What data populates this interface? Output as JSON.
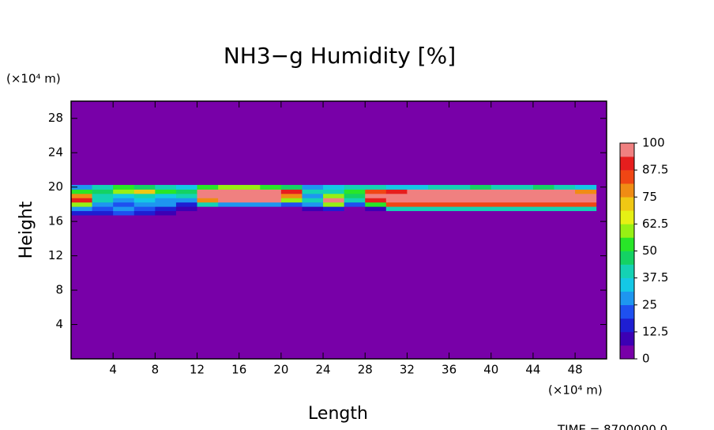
{
  "chart_data": {
    "type": "contour",
    "title": "NH3−g Humidity [%]",
    "y_unit": "(×10⁴ m)",
    "x_unit": "(×10⁴ m)",
    "x_label": "Length",
    "y_label": "Height",
    "footer": "TIME = 8700000.0",
    "xlim": [
      0,
      51
    ],
    "ylim": [
      0,
      30
    ],
    "xticks": [
      4,
      8,
      12,
      16,
      20,
      24,
      28,
      32,
      36,
      40,
      44,
      48
    ],
    "yticks": [
      4,
      8,
      12,
      16,
      20,
      24,
      28
    ],
    "x": [
      1,
      3,
      5,
      7,
      9,
      11,
      13,
      15,
      17,
      19,
      21,
      23,
      25,
      27,
      29,
      31,
      33,
      35,
      37,
      39,
      41,
      43,
      45,
      47,
      49
    ],
    "y": [
      17,
      17.5,
      18,
      18.5,
      19,
      19.5,
      20
    ],
    "z": [
      [
        15,
        15,
        20,
        15,
        10,
        5,
        0,
        0,
        0,
        0,
        0,
        0,
        0,
        0,
        0,
        5,
        5,
        5,
        5,
        5,
        5,
        5,
        5,
        5,
        5
      ],
      [
        25,
        20,
        25,
        20,
        15,
        10,
        5,
        5,
        5,
        5,
        5,
        10,
        15,
        5,
        10,
        40,
        40,
        40,
        40,
        40,
        40,
        40,
        40,
        40,
        40
      ],
      [
        60,
        30,
        20,
        30,
        25,
        15,
        40,
        30,
        30,
        30,
        20,
        30,
        60,
        20,
        50,
        85,
        85,
        85,
        85,
        85,
        85,
        85,
        85,
        85,
        85
      ],
      [
        90,
        40,
        30,
        35,
        30,
        30,
        80,
        100,
        100,
        100,
        60,
        40,
        100,
        40,
        90,
        100,
        100,
        100,
        100,
        100,
        100,
        100,
        100,
        100,
        100
      ],
      [
        80,
        40,
        35,
        40,
        35,
        40,
        95,
        100,
        100,
        100,
        80,
        30,
        60,
        45,
        95,
        100,
        100,
        100,
        100,
        100,
        100,
        100,
        100,
        100,
        100
      ],
      [
        50,
        45,
        60,
        70,
        50,
        45,
        100,
        100,
        100,
        100,
        90,
        40,
        40,
        50,
        85,
        90,
        100,
        100,
        100,
        100,
        100,
        100,
        100,
        95,
        80
      ],
      [
        30,
        40,
        50,
        45,
        40,
        35,
        50,
        60,
        60,
        55,
        45,
        30,
        35,
        40,
        40,
        35,
        35,
        40,
        40,
        45,
        40,
        40,
        45,
        40,
        35
      ]
    ],
    "zlim": [
      0,
      100
    ],
    "colorbar_ticks": [
      0,
      12.5,
      25,
      37.5,
      50,
      62.5,
      75,
      87.5,
      100
    ],
    "colors": [
      "#7800a8",
      "#3c00b4",
      "#1e1ed2",
      "#1e50f0",
      "#1e96f0",
      "#14c8e6",
      "#14d2b4",
      "#14d264",
      "#28e628",
      "#96f014",
      "#e6f014",
      "#f0c814",
      "#f08c14",
      "#f04614",
      "#e61e1e",
      "#f08080"
    ]
  }
}
